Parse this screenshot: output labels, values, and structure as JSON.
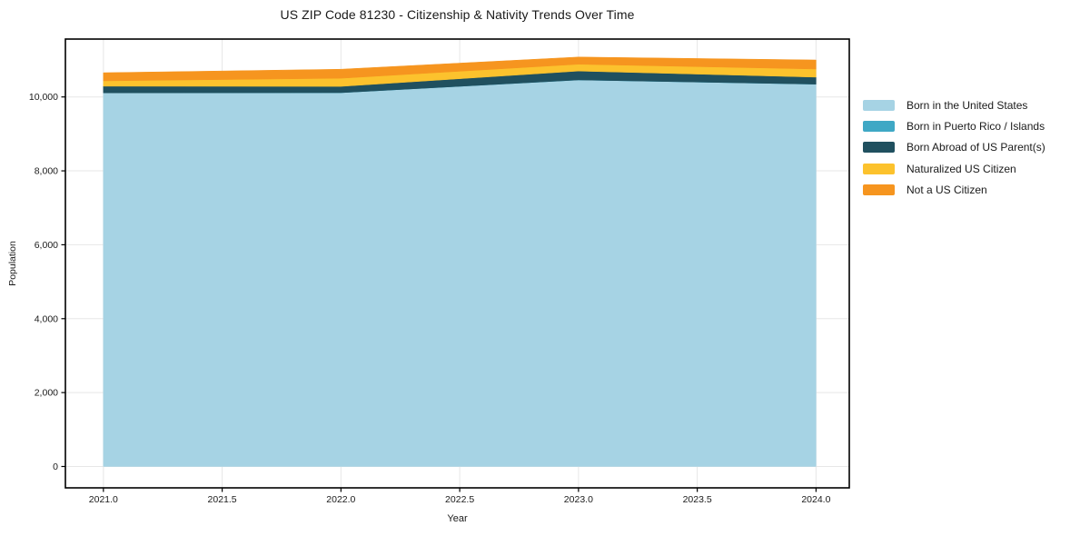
{
  "chart_data": {
    "type": "area",
    "title": "US ZIP Code 81230 - Citizenship & Nativity Trends Over Time",
    "xlabel": "Year",
    "ylabel": "Population",
    "x": [
      2021,
      2022,
      2023,
      2024
    ],
    "series": [
      {
        "name": "Born in the United States",
        "color": "#a6d3e4",
        "values": [
          10110,
          10115,
          10460,
          10345
        ]
      },
      {
        "name": "Born in Puerto Rico / Islands",
        "color": "#3fa8c5",
        "values": [
          0,
          0,
          0,
          0
        ]
      },
      {
        "name": "Born Abroad of US Parent(s)",
        "color": "#20505f",
        "values": [
          180,
          170,
          240,
          190
        ]
      },
      {
        "name": "Naturalized US Citizen",
        "color": "#fcc22d",
        "values": [
          145,
          220,
          185,
          220
        ]
      },
      {
        "name": "Not a US Citizen",
        "color": "#f6951f",
        "values": [
          220,
          245,
          195,
          245
        ]
      }
    ],
    "stacked": true,
    "xlim": [
      2020.84,
      2024.14
    ],
    "ylim": [
      -578,
      11566
    ],
    "xticks": {
      "values": [
        2021,
        2021.5,
        2022,
        2022.5,
        2023,
        2023.5,
        2024
      ],
      "labels": [
        "2021.0",
        "2021.5",
        "2022.0",
        "2022.5",
        "2023.0",
        "2023.5",
        "2024.0"
      ]
    },
    "yticks": {
      "values": [
        0,
        2000,
        4000,
        6000,
        8000,
        10000
      ],
      "labels": [
        "0",
        "2,000",
        "4,000",
        "6,000",
        "8,000",
        "10,000"
      ]
    },
    "grid": true,
    "grid_color": "#e7e7e7",
    "spine_color": "#000000",
    "legend_position": "right-outside"
  }
}
